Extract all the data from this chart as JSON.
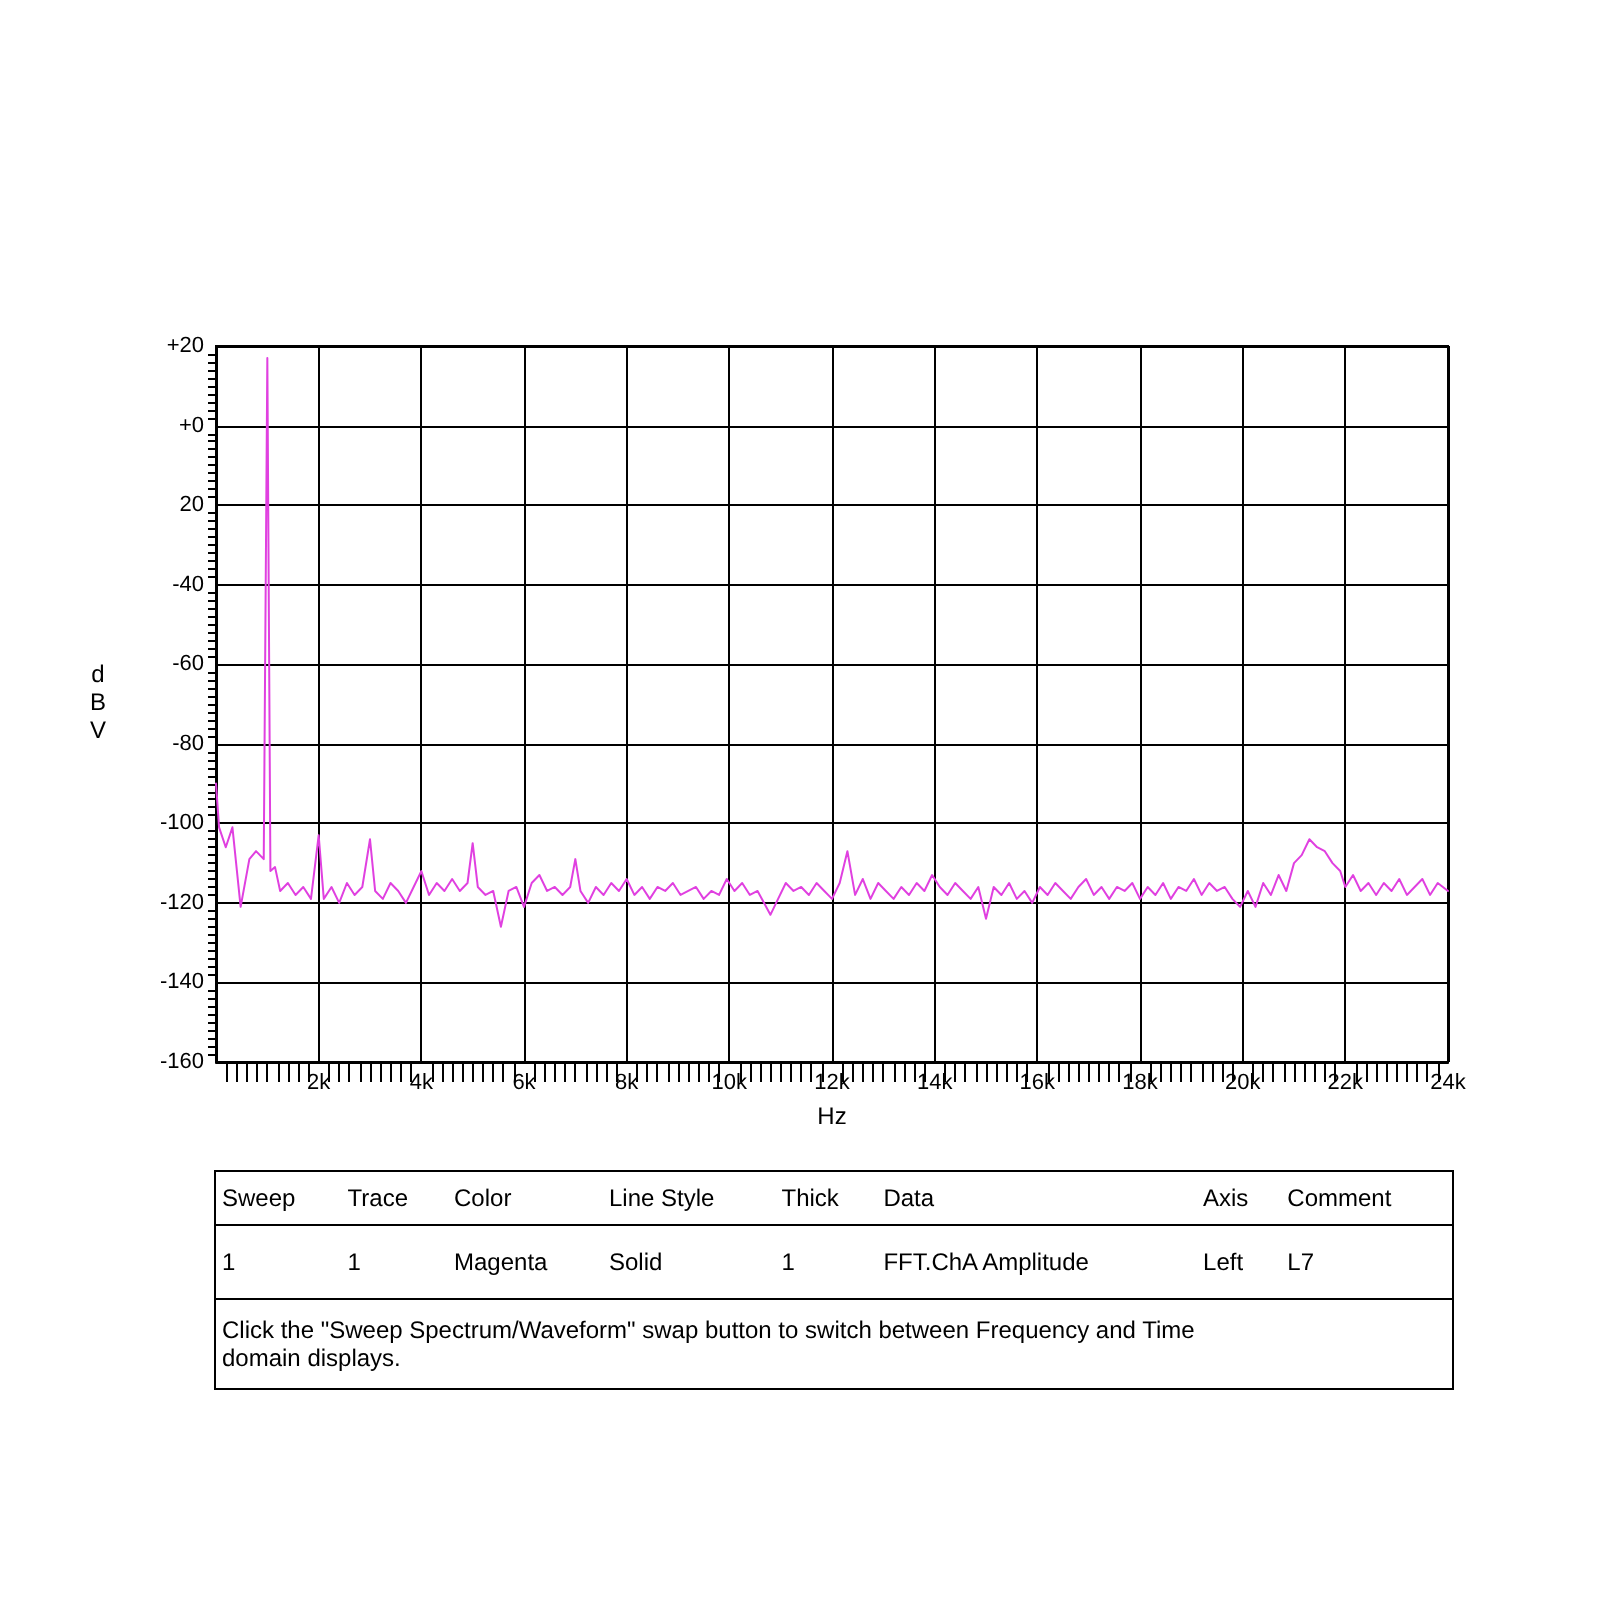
{
  "chart_data": {
    "type": "line",
    "xlabel": "Hz",
    "ylabel": "dBV",
    "xlim": [
      0,
      24000
    ],
    "xticks": [
      {
        "value": 2000,
        "label": "2k"
      },
      {
        "value": 4000,
        "label": "4k"
      },
      {
        "value": 6000,
        "label": "6k"
      },
      {
        "value": 8000,
        "label": "8k"
      },
      {
        "value": 10000,
        "label": "10k"
      },
      {
        "value": 12000,
        "label": "12k"
      },
      {
        "value": 14000,
        "label": "14k"
      },
      {
        "value": 16000,
        "label": "16k"
      },
      {
        "value": 18000,
        "label": "18k"
      },
      {
        "value": 20000,
        "label": "20k"
      },
      {
        "value": 22000,
        "label": "22k"
      },
      {
        "value": 24000,
        "label": "24k"
      }
    ],
    "ylim": [
      -160,
      20
    ],
    "yticks": [
      {
        "value": 20,
        "label": "+20"
      },
      {
        "value": 0,
        "label": "+0"
      },
      {
        "value": -20,
        "label": "20"
      },
      -40,
      -60,
      -80,
      -100,
      -120,
      -140,
      -160
    ],
    "grid": true,
    "marker": "none",
    "line_style": "solid",
    "series": [
      {
        "color": "#e040e0",
        "x": [
          0,
          60,
          190,
          320,
          480,
          650,
          780,
          930,
          1000,
          1060,
          1150,
          1250,
          1400,
          1550,
          1700,
          1850,
          2000,
          2100,
          2250,
          2400,
          2550,
          2700,
          2850,
          3000,
          3100,
          3250,
          3400,
          3550,
          3700,
          3850,
          4000,
          4150,
          4300,
          4450,
          4600,
          4750,
          4900,
          5000,
          5100,
          5250,
          5400,
          5550,
          5700,
          5850,
          6000,
          6150,
          6300,
          6450,
          6600,
          6750,
          6900,
          7000,
          7100,
          7250,
          7400,
          7550,
          7700,
          7850,
          8000,
          8150,
          8300,
          8450,
          8600,
          8750,
          8900,
          9050,
          9200,
          9350,
          9500,
          9650,
          9800,
          9950,
          10100,
          10250,
          10400,
          10550,
          10800,
          10950,
          11100,
          11250,
          11400,
          11550,
          11700,
          11850,
          12000,
          12150,
          12300,
          12450,
          12600,
          12750,
          12900,
          13050,
          13200,
          13350,
          13500,
          13650,
          13800,
          13950,
          14100,
          14250,
          14400,
          14550,
          14700,
          14850,
          15000,
          15150,
          15300,
          15450,
          15600,
          15750,
          15900,
          16050,
          16200,
          16350,
          16500,
          16650,
          16800,
          16950,
          17100,
          17250,
          17400,
          17550,
          17700,
          17850,
          18000,
          18150,
          18300,
          18450,
          18600,
          18750,
          18900,
          19050,
          19200,
          19350,
          19500,
          19650,
          19800,
          19950,
          20100,
          20250,
          20400,
          20550,
          20700,
          20850,
          21000,
          21150,
          21300,
          21450,
          21600,
          21750,
          21900,
          22000,
          22150,
          22300,
          22450,
          22600,
          22750,
          22900,
          23050,
          23200,
          23350,
          23500,
          23650,
          23800,
          24000
        ],
        "values": [
          -90,
          -101,
          -106,
          -101,
          -121,
          -109,
          -107,
          -109,
          17,
          -112,
          -111,
          -117,
          -115,
          -118,
          -116,
          -119,
          -103,
          -119,
          -116,
          -120,
          -115,
          -118,
          -116,
          -104,
          -117,
          -119,
          -115,
          -117,
          -120,
          -116,
          -112,
          -118,
          -115,
          -117,
          -114,
          -117,
          -115,
          -105,
          -116,
          -118,
          -117,
          -126,
          -117,
          -116,
          -121,
          -115,
          -113,
          -117,
          -116,
          -118,
          -116,
          -109,
          -117,
          -120,
          -116,
          -118,
          -115,
          -117,
          -114,
          -118,
          -116,
          -119,
          -116,
          -117,
          -115,
          -118,
          -117,
          -116,
          -119,
          -117,
          -118,
          -114,
          -117,
          -115,
          -118,
          -117,
          -123,
          -119,
          -115,
          -117,
          -116,
          -118,
          -115,
          -117,
          -119,
          -115,
          -107,
          -118,
          -114,
          -119,
          -115,
          -117,
          -119,
          -116,
          -118,
          -115,
          -117,
          -113,
          -116,
          -118,
          -115,
          -117,
          -119,
          -116,
          -124,
          -116,
          -118,
          -115,
          -119,
          -117,
          -120,
          -116,
          -118,
          -115,
          -117,
          -119,
          -116,
          -114,
          -118,
          -116,
          -119,
          -116,
          -117,
          -115,
          -119,
          -116,
          -118,
          -115,
          -119,
          -116,
          -117,
          -114,
          -118,
          -115,
          -117,
          -116,
          -119,
          -121,
          -117,
          -121,
          -115,
          -118,
          -113,
          -117,
          -110,
          -108,
          -104,
          -106,
          -107,
          -110,
          -112,
          -116,
          -113,
          -117,
          -115,
          -118,
          -115,
          -117,
          -114,
          -118,
          -116,
          -114,
          -118,
          -115,
          -117
        ]
      }
    ],
    "annotations": [
      "Sweep",
      "Trace",
      "Color",
      "Line Style",
      "Thick",
      "Data",
      "Axis",
      "Comment",
      "1",
      "1",
      "Magenta",
      "Solid",
      "1",
      "FFT.ChA Amplitude",
      "Left",
      "L7",
      "Click the \"Sweep Spectrum/Waveform\" swap button to switch between Frequency and Time domain displays."
    ]
  }
}
